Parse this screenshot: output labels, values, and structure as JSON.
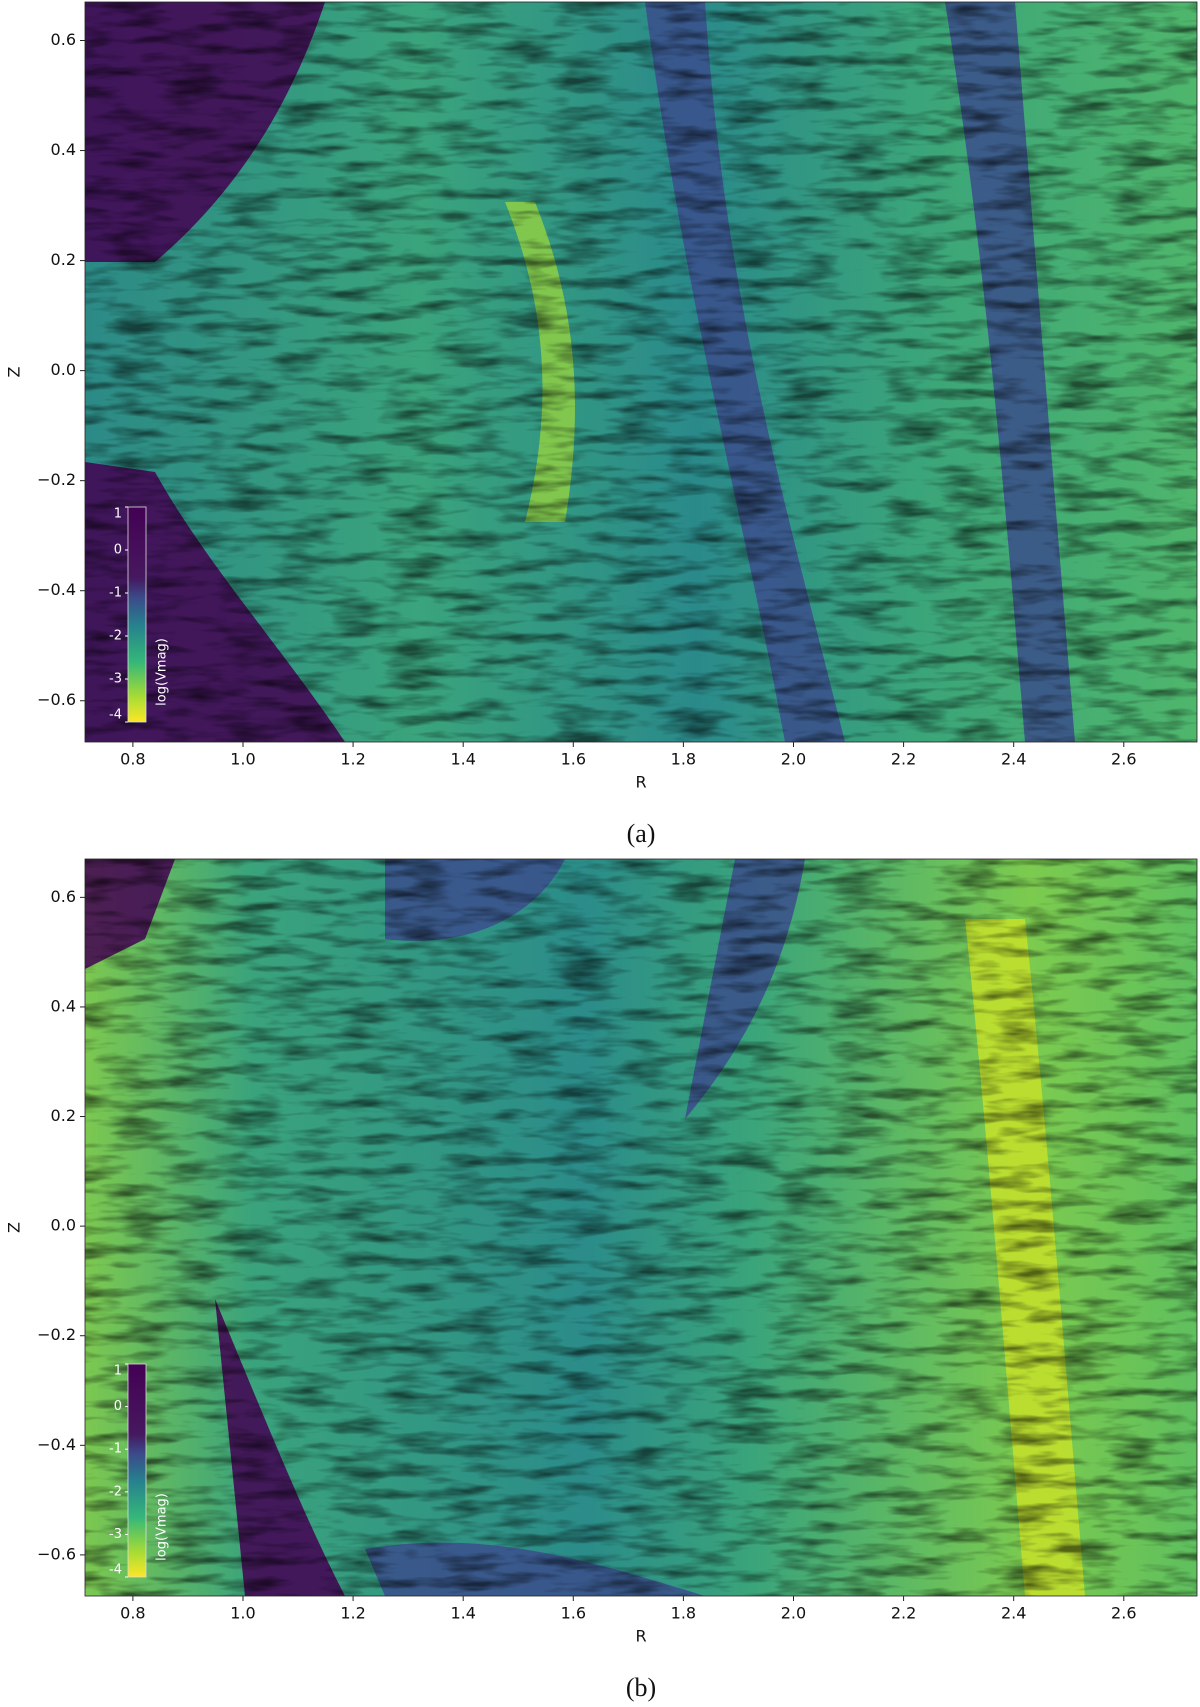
{
  "chart_data": [
    {
      "type": "image",
      "caption": "(a)",
      "xlabel": "R",
      "ylabel": "Z",
      "xlim": [
        0.713,
        2.733
      ],
      "ylim": [
        -0.675,
        0.67
      ],
      "xticks": [
        0.8,
        {
          "value": 1,
          "label": "1.0"
        },
        1.2,
        1.4,
        1.6,
        1.8,
        {
          "value": 2,
          "label": "2.0"
        },
        2.2,
        2.4,
        2.6
      ],
      "yticks": [
        {
          "value": -0.6,
          "label": "−0.6"
        },
        {
          "value": -0.4,
          "label": "−0.4"
        },
        {
          "value": -0.2,
          "label": "−0.2"
        },
        {
          "value": 0,
          "label": "0.0"
        },
        0.2,
        0.4,
        0.6
      ],
      "colorbar": {
        "label": "log(Vmag)",
        "lim": [
          -4,
          1
        ],
        "ticks": [
          1,
          0,
          -1,
          -2,
          -3,
          -4
        ]
      }
    },
    {
      "type": "image",
      "caption": "(b)",
      "xlabel": "R",
      "ylabel": "Z",
      "xlim": [
        0.713,
        2.733
      ],
      "ylim": [
        -0.675,
        0.67
      ],
      "xticks": [
        0.8,
        {
          "value": 1,
          "label": "1.0"
        },
        1.2,
        1.4,
        1.6,
        1.8,
        {
          "value": 2,
          "label": "2.0"
        },
        2.2,
        2.4,
        2.6
      ],
      "yticks": [
        {
          "value": -0.6,
          "label": "−0.6"
        },
        {
          "value": -0.4,
          "label": "−0.4"
        },
        {
          "value": -0.2,
          "label": "−0.2"
        },
        {
          "value": 0,
          "label": "0.0"
        },
        0.2,
        0.4,
        0.6
      ],
      "colorbar": {
        "label": "log(Vmag)",
        "lim": [
          -4,
          1
        ],
        "ticks": [
          1,
          0,
          -1,
          -2,
          -3,
          -4
        ]
      }
    }
  ]
}
